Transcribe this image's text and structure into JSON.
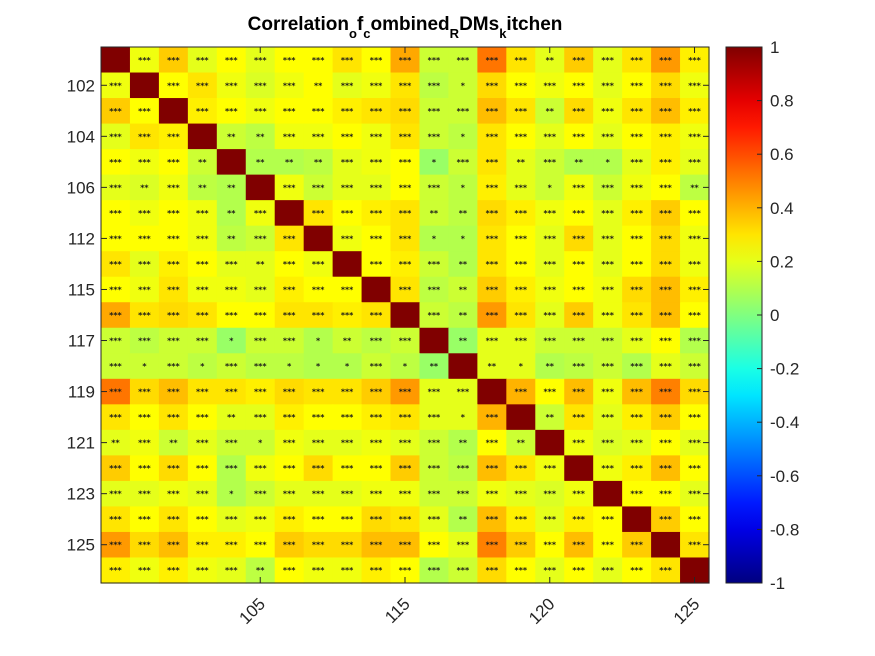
{
  "chart_data": {
    "type": "heatmap",
    "title": {
      "segments": [
        {
          "text": "Correlation",
          "sub": false
        },
        {
          "text": "o",
          "sub": true
        },
        {
          "text": "f",
          "sub": false
        },
        {
          "text": "c",
          "sub": true
        },
        {
          "text": "ombined",
          "sub": false
        },
        {
          "text": "R",
          "sub": true
        },
        {
          "text": "DMs",
          "sub": false
        },
        {
          "text": "k",
          "sub": true
        },
        {
          "text": "itchen",
          "sub": false
        }
      ]
    },
    "colormap": "jet",
    "clim": [
      -1,
      1
    ],
    "colorbar_ticks": [
      "-1",
      "-0.8",
      "-0.6",
      "-0.4",
      "-0.2",
      "0",
      "0.2",
      "0.4",
      "0.6",
      "0.8",
      "1"
    ],
    "y_tick_labels": [
      {
        "row": 2,
        "label": "102"
      },
      {
        "row": 4,
        "label": "104"
      },
      {
        "row": 6,
        "label": "106"
      },
      {
        "row": 8,
        "label": "112"
      },
      {
        "row": 10,
        "label": "115"
      },
      {
        "row": 12,
        "label": "117"
      },
      {
        "row": 14,
        "label": "119"
      },
      {
        "row": 16,
        "label": "121"
      },
      {
        "row": 18,
        "label": "123"
      },
      {
        "row": 20,
        "label": "125"
      }
    ],
    "x_tick_labels": [
      {
        "col": 6,
        "label": "105"
      },
      {
        "col": 11,
        "label": "115"
      },
      {
        "col": 16,
        "label": "120"
      },
      {
        "col": 21,
        "label": "125"
      }
    ],
    "values": [
      [
        1.0,
        0.22,
        0.35,
        0.2,
        0.25,
        0.2,
        0.25,
        0.25,
        0.3,
        0.25,
        0.42,
        0.15,
        0.15,
        0.52,
        0.3,
        0.2,
        0.35,
        0.2,
        0.3,
        0.45,
        0.28
      ],
      [
        0.22,
        1.0,
        0.25,
        0.3,
        0.22,
        0.18,
        0.22,
        0.25,
        0.2,
        0.22,
        0.3,
        0.12,
        0.15,
        0.32,
        0.25,
        0.22,
        0.25,
        0.2,
        0.25,
        0.32,
        0.22
      ],
      [
        0.35,
        0.25,
        1.0,
        0.28,
        0.25,
        0.22,
        0.25,
        0.25,
        0.28,
        0.3,
        0.32,
        0.15,
        0.15,
        0.38,
        0.3,
        0.15,
        0.32,
        0.22,
        0.3,
        0.38,
        0.28
      ],
      [
        0.2,
        0.3,
        0.28,
        1.0,
        0.15,
        0.12,
        0.22,
        0.22,
        0.25,
        0.22,
        0.3,
        0.15,
        0.12,
        0.3,
        0.25,
        0.2,
        0.25,
        0.2,
        0.25,
        0.28,
        0.22
      ],
      [
        0.25,
        0.22,
        0.25,
        0.15,
        1.0,
        0.1,
        0.1,
        0.12,
        0.2,
        0.22,
        0.25,
        0.05,
        0.15,
        0.3,
        0.2,
        0.15,
        0.1,
        0.1,
        0.2,
        0.28,
        0.2
      ],
      [
        0.2,
        0.18,
        0.22,
        0.12,
        0.1,
        1.0,
        0.22,
        0.15,
        0.2,
        0.2,
        0.25,
        0.15,
        0.12,
        0.28,
        0.2,
        0.15,
        0.22,
        0.15,
        0.22,
        0.25,
        0.12
      ],
      [
        0.25,
        0.22,
        0.25,
        0.22,
        0.1,
        0.22,
        1.0,
        0.3,
        0.25,
        0.28,
        0.3,
        0.15,
        0.12,
        0.32,
        0.28,
        0.22,
        0.25,
        0.2,
        0.28,
        0.35,
        0.25
      ],
      [
        0.25,
        0.25,
        0.25,
        0.22,
        0.12,
        0.15,
        0.3,
        1.0,
        0.22,
        0.25,
        0.3,
        0.1,
        0.1,
        0.3,
        0.25,
        0.2,
        0.32,
        0.2,
        0.25,
        0.32,
        0.22
      ],
      [
        0.3,
        0.2,
        0.28,
        0.25,
        0.2,
        0.2,
        0.25,
        0.22,
        1.0,
        0.25,
        0.28,
        0.15,
        0.1,
        0.3,
        0.25,
        0.2,
        0.25,
        0.2,
        0.25,
        0.32,
        0.22
      ],
      [
        0.25,
        0.22,
        0.3,
        0.22,
        0.22,
        0.2,
        0.28,
        0.25,
        0.25,
        1.0,
        0.3,
        0.12,
        0.15,
        0.35,
        0.28,
        0.22,
        0.25,
        0.22,
        0.32,
        0.38,
        0.28
      ],
      [
        0.42,
        0.3,
        0.32,
        0.3,
        0.25,
        0.25,
        0.3,
        0.3,
        0.28,
        0.3,
        1.0,
        0.15,
        0.12,
        0.45,
        0.3,
        0.2,
        0.35,
        0.22,
        0.3,
        0.38,
        0.25
      ],
      [
        0.15,
        0.12,
        0.15,
        0.15,
        0.05,
        0.15,
        0.15,
        0.1,
        0.15,
        0.12,
        0.15,
        1.0,
        0.05,
        0.2,
        0.2,
        0.15,
        0.15,
        0.15,
        0.2,
        0.25,
        0.1
      ],
      [
        0.15,
        0.15,
        0.15,
        0.12,
        0.15,
        0.12,
        0.12,
        0.1,
        0.1,
        0.15,
        0.12,
        0.05,
        1.0,
        0.2,
        0.2,
        0.1,
        0.12,
        0.15,
        0.1,
        0.2,
        0.15
      ],
      [
        0.52,
        0.32,
        0.38,
        0.3,
        0.3,
        0.28,
        0.32,
        0.3,
        0.3,
        0.35,
        0.45,
        0.2,
        0.2,
        1.0,
        0.4,
        0.25,
        0.38,
        0.22,
        0.38,
        0.5,
        0.32
      ],
      [
        0.3,
        0.25,
        0.3,
        0.25,
        0.2,
        0.2,
        0.28,
        0.25,
        0.25,
        0.28,
        0.3,
        0.2,
        0.2,
        0.4,
        1.0,
        0.15,
        0.3,
        0.2,
        0.28,
        0.35,
        0.25
      ],
      [
        0.2,
        0.22,
        0.15,
        0.2,
        0.15,
        0.15,
        0.22,
        0.2,
        0.2,
        0.22,
        0.2,
        0.15,
        0.1,
        0.25,
        0.15,
        1.0,
        0.22,
        0.18,
        0.2,
        0.25,
        0.2
      ],
      [
        0.35,
        0.25,
        0.32,
        0.25,
        0.1,
        0.22,
        0.25,
        0.32,
        0.25,
        0.25,
        0.35,
        0.15,
        0.12,
        0.38,
        0.3,
        0.22,
        1.0,
        0.22,
        0.28,
        0.38,
        0.25
      ],
      [
        0.2,
        0.2,
        0.22,
        0.2,
        0.1,
        0.15,
        0.2,
        0.2,
        0.2,
        0.22,
        0.22,
        0.15,
        0.15,
        0.22,
        0.2,
        0.18,
        0.22,
        1.0,
        0.25,
        0.25,
        0.2
      ],
      [
        0.3,
        0.25,
        0.3,
        0.25,
        0.2,
        0.22,
        0.28,
        0.25,
        0.25,
        0.32,
        0.3,
        0.2,
        0.1,
        0.38,
        0.28,
        0.2,
        0.28,
        0.25,
        1.0,
        0.35,
        0.25
      ],
      [
        0.45,
        0.32,
        0.38,
        0.28,
        0.28,
        0.25,
        0.35,
        0.32,
        0.32,
        0.38,
        0.38,
        0.25,
        0.2,
        0.5,
        0.35,
        0.25,
        0.38,
        0.25,
        0.35,
        1.0,
        0.3
      ],
      [
        0.28,
        0.22,
        0.28,
        0.22,
        0.2,
        0.12,
        0.25,
        0.22,
        0.22,
        0.28,
        0.25,
        0.1,
        0.15,
        0.32,
        0.25,
        0.2,
        0.25,
        0.2,
        0.25,
        0.3,
        1.0
      ]
    ],
    "significance": [
      [
        "",
        "***",
        "***",
        "***",
        "***",
        "***",
        "***",
        "***",
        "***",
        "***",
        "***",
        "***",
        "***",
        "***",
        "***",
        "**",
        "***",
        "***",
        "***",
        "***",
        "***"
      ],
      [
        "***",
        "",
        "***",
        "***",
        "***",
        "***",
        "***",
        "**",
        "***",
        "***",
        "***",
        "***",
        "*",
        "***",
        "***",
        "***",
        "***",
        "***",
        "***",
        "***",
        "***"
      ],
      [
        "***",
        "***",
        "",
        "***",
        "***",
        "***",
        "***",
        "***",
        "***",
        "***",
        "***",
        "***",
        "***",
        "***",
        "***",
        "**",
        "***",
        "***",
        "***",
        "***",
        "***"
      ],
      [
        "***",
        "***",
        "***",
        "",
        "**",
        "**",
        "***",
        "***",
        "***",
        "***",
        "***",
        "***",
        "*",
        "***",
        "***",
        "***",
        "***",
        "***",
        "***",
        "***",
        "***"
      ],
      [
        "***",
        "***",
        "***",
        "**",
        "",
        "**",
        "**",
        "**",
        "***",
        "***",
        "***",
        "*",
        "***",
        "***",
        "**",
        "***",
        "**",
        "*",
        "***",
        "***",
        "***"
      ],
      [
        "***",
        "**",
        "***",
        "**",
        "**",
        "",
        "***",
        "***",
        "***",
        "***",
        "***",
        "***",
        "*",
        "***",
        "***",
        "*",
        "***",
        "***",
        "***",
        "***",
        "**"
      ],
      [
        "***",
        "***",
        "***",
        "***",
        "**",
        "***",
        "",
        "***",
        "***",
        "***",
        "***",
        "**",
        "**",
        "***",
        "***",
        "***",
        "***",
        "***",
        "***",
        "***",
        "***"
      ],
      [
        "***",
        "***",
        "***",
        "***",
        "**",
        "***",
        "***",
        "",
        "***",
        "***",
        "***",
        "*",
        "*",
        "***",
        "***",
        "***",
        "***",
        "***",
        "***",
        "***",
        "***"
      ],
      [
        "***",
        "***",
        "***",
        "***",
        "***",
        "**",
        "***",
        "***",
        "",
        "***",
        "***",
        "***",
        "**",
        "***",
        "***",
        "***",
        "***",
        "***",
        "***",
        "***",
        "***"
      ],
      [
        "***",
        "***",
        "***",
        "***",
        "***",
        "***",
        "***",
        "***",
        "***",
        "",
        "***",
        "***",
        "**",
        "***",
        "***",
        "***",
        "***",
        "***",
        "***",
        "***",
        "***"
      ],
      [
        "***",
        "***",
        "***",
        "***",
        "***",
        "***",
        "***",
        "***",
        "***",
        "***",
        "",
        "***",
        "**",
        "***",
        "***",
        "***",
        "***",
        "***",
        "***",
        "***",
        "***"
      ],
      [
        "***",
        "***",
        "***",
        "***",
        "*",
        "***",
        "***",
        "*",
        "**",
        "***",
        "***",
        "",
        "**",
        "***",
        "***",
        "***",
        "***",
        "***",
        "***",
        "***",
        "***"
      ],
      [
        "***",
        "*",
        "***",
        "*",
        "***",
        "***",
        "*",
        "*",
        "*",
        "***",
        "*",
        "**",
        "",
        "**",
        "*",
        "**",
        "***",
        "***",
        "***",
        "***",
        "***"
      ],
      [
        "***",
        "***",
        "***",
        "***",
        "***",
        "***",
        "***",
        "***",
        "***",
        "***",
        "***",
        "***",
        "***",
        "",
        "***",
        "***",
        "***",
        "***",
        "***",
        "***",
        "***"
      ],
      [
        "***",
        "***",
        "***",
        "***",
        "**",
        "***",
        "***",
        "***",
        "***",
        "***",
        "***",
        "***",
        "*",
        "***",
        "",
        "**",
        "***",
        "***",
        "***",
        "***",
        "***"
      ],
      [
        "**",
        "***",
        "**",
        "***",
        "***",
        "*",
        "***",
        "***",
        "***",
        "***",
        "***",
        "***",
        "**",
        "***",
        "**",
        "",
        "***",
        "***",
        "***",
        "***",
        "***"
      ],
      [
        "***",
        "***",
        "***",
        "***",
        "***",
        "***",
        "***",
        "***",
        "***",
        "***",
        "***",
        "***",
        "***",
        "***",
        "***",
        "***",
        "",
        "***",
        "***",
        "***",
        "***"
      ],
      [
        "***",
        "***",
        "***",
        "***",
        "*",
        "***",
        "***",
        "***",
        "***",
        "***",
        "***",
        "***",
        "***",
        "***",
        "***",
        "***",
        "***",
        "",
        "***",
        "***",
        "***"
      ],
      [
        "***",
        "***",
        "***",
        "***",
        "***",
        "***",
        "***",
        "***",
        "***",
        "***",
        "***",
        "***",
        "**",
        "***",
        "***",
        "***",
        "***",
        "***",
        "",
        "***",
        "***"
      ],
      [
        "***",
        "***",
        "***",
        "***",
        "***",
        "***",
        "***",
        "***",
        "***",
        "***",
        "***",
        "***",
        "***",
        "***",
        "***",
        "***",
        "***",
        "***",
        "***",
        "",
        "***"
      ],
      [
        "***",
        "***",
        "***",
        "***",
        "***",
        "**",
        "***",
        "***",
        "***",
        "***",
        "***",
        "***",
        "***",
        "***",
        "***",
        "***",
        "***",
        "***",
        "***",
        "***",
        ""
      ]
    ]
  }
}
